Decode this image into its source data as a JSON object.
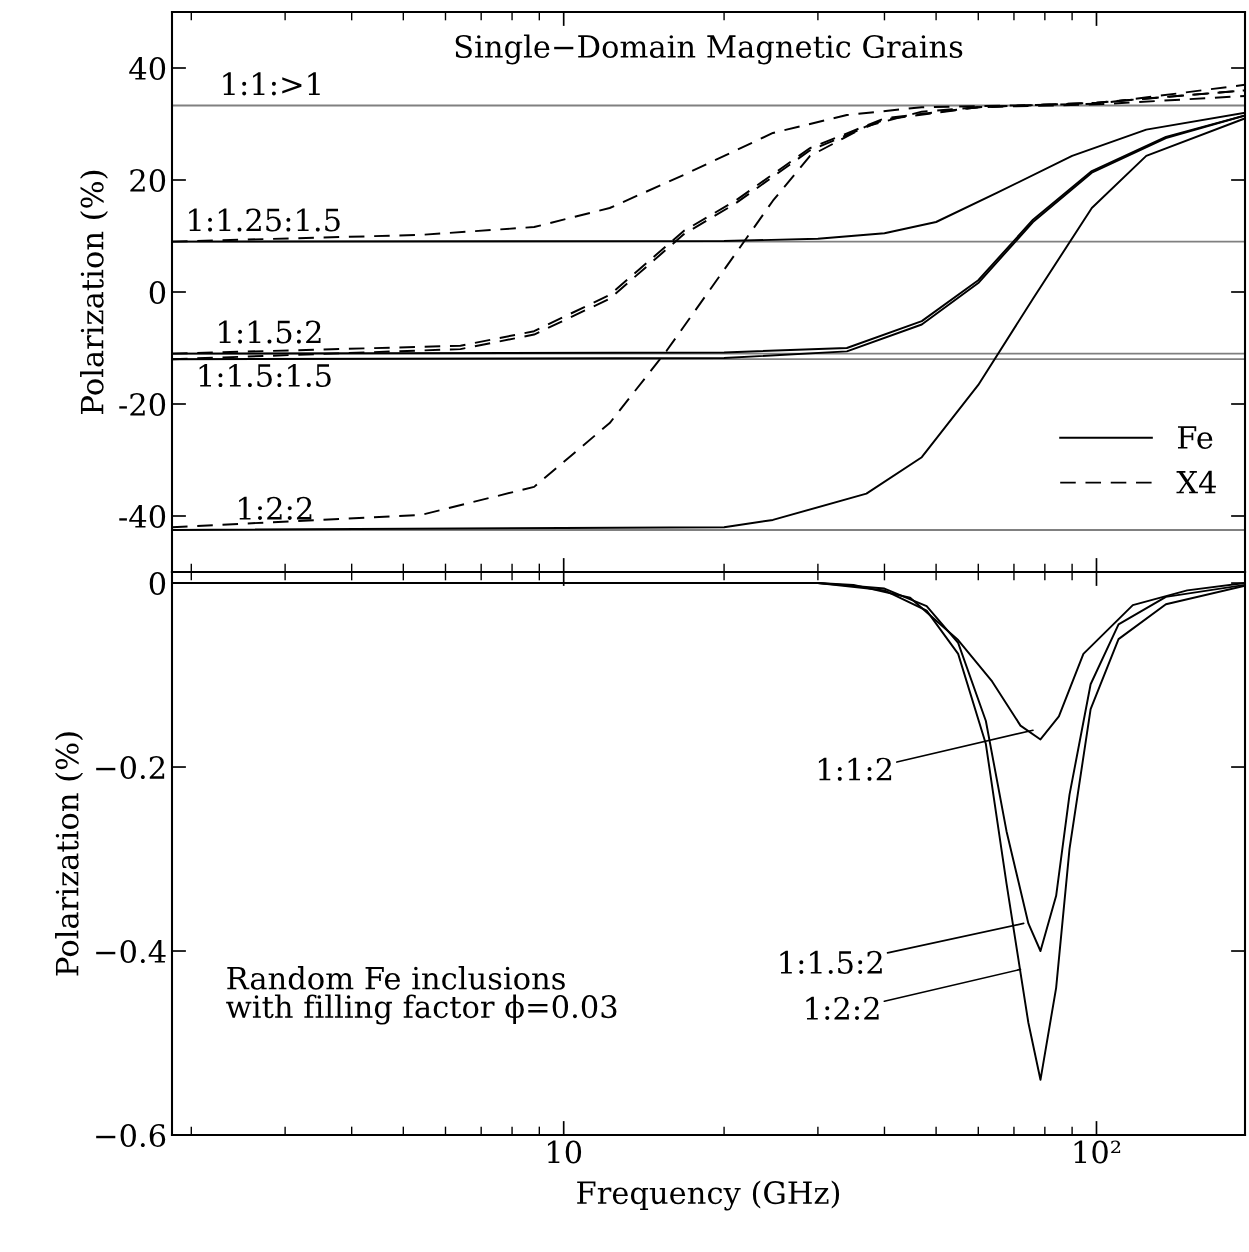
{
  "chart_data": [
    {
      "type": "line",
      "title": "Single−Domain Magnetic Grains",
      "ylabel": "Polarization (%)",
      "log": "x",
      "xlim": [
        1.84,
        190
      ],
      "xticks": [
        10,
        100
      ],
      "ylim": [
        -50,
        50
      ],
      "yticks": [
        -40,
        -20,
        0,
        20,
        40
      ],
      "tick_labels": "y",
      "legend": "bottom right",
      "grid": false,
      "ref_lines": [
        {
          "axis": "y",
          "value": 33.3,
          "color": "#808080"
        },
        {
          "axis": "y",
          "value": 9,
          "color": "#808080"
        },
        {
          "axis": "y",
          "value": -11,
          "color": "#808080"
        },
        {
          "axis": "y",
          "value": -12,
          "color": "#808080"
        },
        {
          "axis": "y",
          "value": -42.5,
          "color": "#808080"
        }
      ],
      "annotations": [
        {
          "text": "1:1:>1",
          "x": 2.26,
          "y": 33.3
        },
        {
          "text": "1:1.25:1.5",
          "x": 1.95,
          "y": 9
        },
        {
          "text": "1:1.5:2",
          "x": 2.22,
          "y": -11
        },
        {
          "text": "1:1.5:1.5",
          "x": 2.04,
          "y": -12
        },
        {
          "text": "1:2:2",
          "x": 2.42,
          "y": -42.5
        }
      ],
      "series": [
        {
          "name": "Fe",
          "color": "#000000",
          "line_style": "solid",
          "x": [
            1.84,
            20,
            30,
            40,
            50,
            65,
            90,
            124,
            190
          ],
          "values": [
            9,
            9.1,
            9.5,
            10.5,
            12.5,
            17.7,
            24.3,
            29,
            32
          ]
        },
        {
          "color": "#000000",
          "line_style": "solid",
          "x": [
            1.84,
            20,
            34,
            47,
            60,
            76,
            98,
            135,
            190
          ],
          "values": [
            -11,
            -10.8,
            -10,
            -5.2,
            2.1,
            12.9,
            21.6,
            27.7,
            31.5
          ]
        },
        {
          "color": "#000000",
          "line_style": "solid",
          "x": [
            1.84,
            20,
            34,
            47,
            60,
            76,
            98,
            135,
            190
          ],
          "values": [
            -12,
            -11.8,
            -10.6,
            -5.8,
            1.6,
            12.5,
            21.3,
            27.5,
            31.5
          ]
        },
        {
          "color": "#000000",
          "line_style": "solid",
          "x": [
            1.84,
            20,
            24.7,
            37,
            47,
            60,
            76,
            98,
            124,
            190
          ],
          "values": [
            -42.5,
            -42,
            -40.7,
            -36,
            -29.5,
            -16.6,
            -1.2,
            15,
            24.3,
            31
          ]
        },
        {
          "name": "X4",
          "color": "#000000",
          "line_style": "dashed",
          "x": [
            1.84,
            5.4,
            8.8,
            12.2,
            16.8,
            24.7,
            34,
            47,
            100,
            190
          ],
          "values": [
            9,
            10.2,
            11.6,
            15,
            20.9,
            28.4,
            31.6,
            33,
            33.6,
            37
          ]
        },
        {
          "color": "#000000",
          "line_style": "dashed",
          "x": [
            1.84,
            6.4,
            8.8,
            12.2,
            16.8,
            21,
            29,
            40,
            60,
            100,
            190
          ],
          "values": [
            -11,
            -9.6,
            -7,
            -0.5,
            10.9,
            16.3,
            25.7,
            31,
            33,
            33.8,
            36
          ]
        },
        {
          "color": "#000000",
          "line_style": "dashed",
          "x": [
            1.84,
            6.4,
            8.8,
            12.2,
            16.8,
            21,
            29,
            40,
            60,
            100,
            190
          ],
          "values": [
            -12,
            -10.2,
            -7.6,
            -1.2,
            10.3,
            15.8,
            25.3,
            30.8,
            33,
            33.8,
            36
          ]
        },
        {
          "color": "#000000",
          "line_style": "dashed",
          "x": [
            1.84,
            5.4,
            8.8,
            12.2,
            15.6,
            21,
            24.7,
            29,
            37,
            47,
            60,
            100,
            190
          ],
          "values": [
            -42,
            -39.8,
            -34.8,
            -23.4,
            -10.5,
            6.8,
            16.3,
            24.3,
            29.6,
            32.2,
            33,
            33.5,
            35
          ]
        }
      ]
    },
    {
      "type": "line",
      "xlabel": "Frequency (GHz)",
      "ylabel": "Polarization (%)",
      "log": "x",
      "xlim": [
        1.84,
        190
      ],
      "xticks": [
        10,
        {
          "value": 100,
          "label": "10²"
        }
      ],
      "ylim": [
        -0.6,
        0.012
      ],
      "yticks": [
        {
          "value": -0.6,
          "label": "−0.6"
        },
        {
          "value": -0.4,
          "label": "−0.4"
        },
        {
          "value": -0.2,
          "label": "−0.2"
        },
        0
      ],
      "grid": false,
      "annotations": [
        "Random Fe inclusions\nwith filling factor ϕ=0.03",
        {
          "text": "1:1:2",
          "x": 76,
          "y": -0.16
        },
        {
          "text": "1:1.5:2",
          "x": 73,
          "y": -0.37
        },
        {
          "text": "1:2:2",
          "x": 72,
          "y": -0.42
        }
      ],
      "series": [
        {
          "color": "#000000",
          "line_style": "solid",
          "x": [
            1.84,
            30,
            35,
            44.7,
            55,
            63.7,
            72,
            78.5,
            85,
            94.5,
            117,
            148,
            190
          ],
          "values": [
            0,
            0,
            -0.002,
            -0.016,
            -0.062,
            -0.107,
            -0.155,
            -0.17,
            -0.145,
            -0.077,
            -0.024,
            -0.008,
            0
          ]
        },
        {
          "color": "#000000",
          "line_style": "solid",
          "x": [
            1.84,
            30,
            40,
            48,
            55,
            62,
            67.8,
            74.5,
            78.5,
            84,
            89,
            97.5,
            110,
            135,
            190
          ],
          "values": [
            0,
            0,
            -0.006,
            -0.025,
            -0.065,
            -0.15,
            -0.27,
            -0.37,
            -0.4,
            -0.34,
            -0.23,
            -0.11,
            -0.045,
            -0.015,
            -0.002
          ]
        },
        {
          "color": "#000000",
          "line_style": "solid",
          "x": [
            1.84,
            30,
            40,
            48,
            55,
            62,
            67.8,
            74.5,
            78.5,
            84,
            89,
            97.5,
            110,
            135,
            190
          ],
          "values": [
            0,
            0,
            -0.008,
            -0.03,
            -0.077,
            -0.175,
            -0.327,
            -0.478,
            -0.54,
            -0.44,
            -0.289,
            -0.137,
            -0.061,
            -0.023,
            -0.003
          ]
        }
      ]
    }
  ]
}
